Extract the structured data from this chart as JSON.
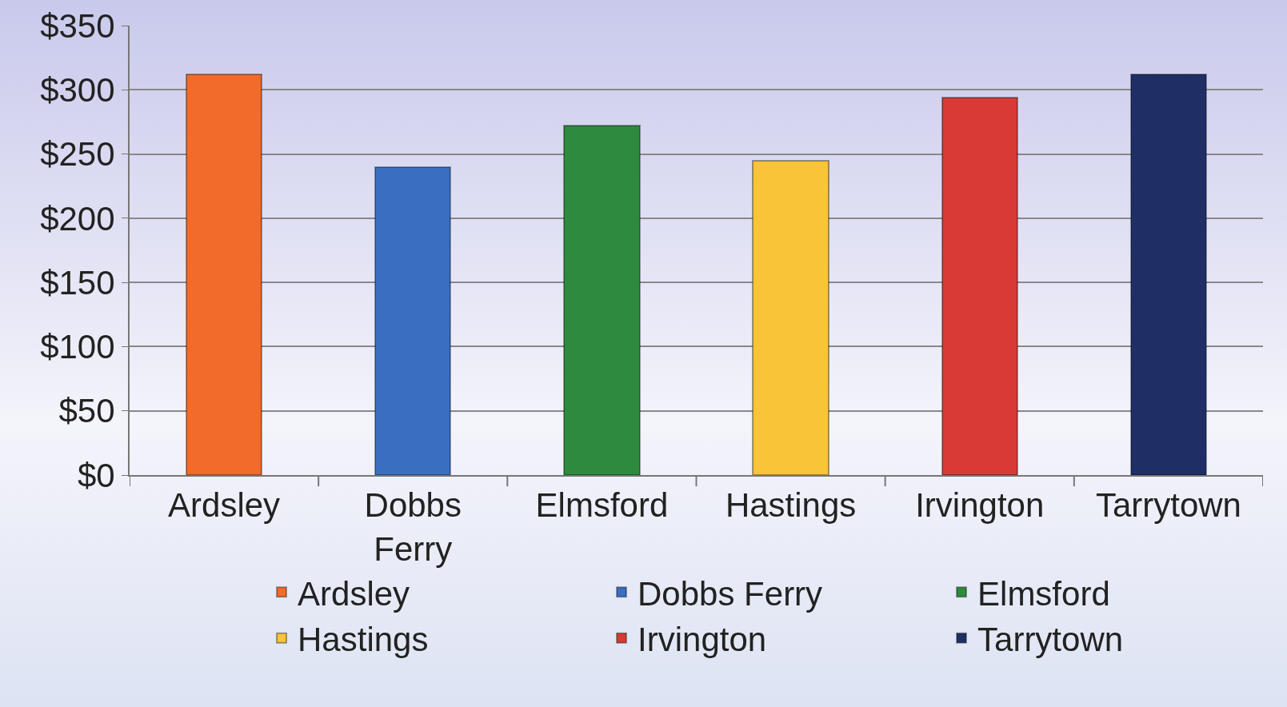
{
  "chart_data": {
    "type": "bar",
    "categories": [
      "Ardsley",
      "Dobbs Ferry",
      "Elmsford",
      "Hastings",
      "Irvington",
      "Tarrytown"
    ],
    "series": [
      {
        "name": "Ardsley",
        "color": "#f26b2a",
        "values": [
          312,
          null,
          null,
          null,
          null,
          null
        ]
      },
      {
        "name": "Dobbs Ferry",
        "color": "#3a6fc0",
        "values": [
          null,
          240,
          null,
          null,
          null,
          null
        ]
      },
      {
        "name": "Elmsford",
        "color": "#2e8b3e",
        "values": [
          null,
          null,
          272,
          null,
          null,
          null
        ]
      },
      {
        "name": "Hastings",
        "color": "#f9c437",
        "values": [
          null,
          null,
          null,
          245,
          null,
          null
        ]
      },
      {
        "name": "Irvington",
        "color": "#d93a35",
        "values": [
          null,
          null,
          null,
          null,
          294,
          null
        ]
      },
      {
        "name": "Tarrytown",
        "color": "#1f2f66",
        "values": [
          null,
          null,
          null,
          null,
          null,
          312
        ]
      }
    ],
    "stacked": true,
    "ylim": [
      0,
      350
    ],
    "yticks": [
      {
        "value": 0,
        "label": "$0"
      },
      {
        "value": 50,
        "label": "$50"
      },
      {
        "value": 100,
        "label": "$100"
      },
      {
        "value": 150,
        "label": "$150"
      },
      {
        "value": 200,
        "label": "$200"
      },
      {
        "value": 250,
        "label": "$250"
      },
      {
        "value": 300,
        "label": "$300"
      },
      {
        "value": 350,
        "label": "$350"
      }
    ],
    "grid": "y",
    "legend": "bottom"
  }
}
